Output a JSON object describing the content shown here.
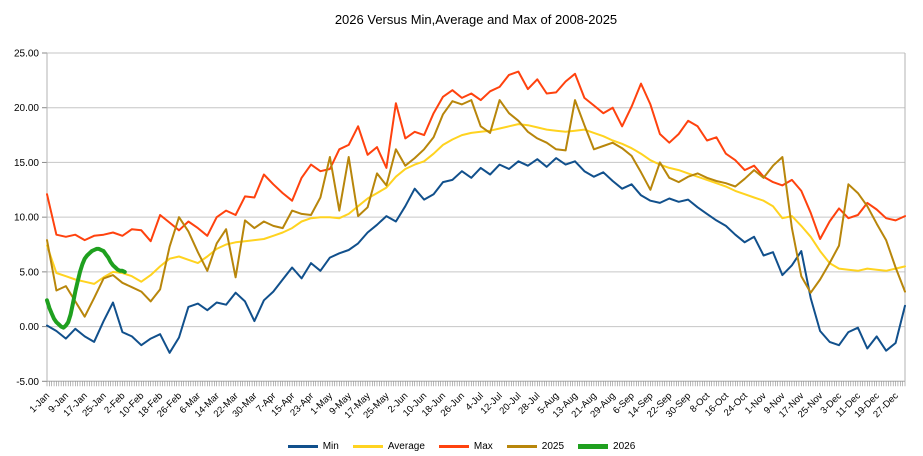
{
  "title": "2026 Versus Min,Average and Max of 2008-2025",
  "chart_data": {
    "type": "line",
    "title": "2026 Versus Min,Average and Max of 2008-2025",
    "grid": "horizontal",
    "grid_color": "#c6c6c6",
    "axis_color": "#b3b3b3",
    "tick_color": "#888888",
    "legend_position": "bottom",
    "y_axis": {
      "min": -5,
      "max": 25,
      "step": 5,
      "tick_labels": [
        "25.00",
        "20.00",
        "15.00",
        "10.00",
        "5.00",
        "0.00",
        "-5.00"
      ]
    },
    "x_axis": {
      "days_in_year": 365,
      "label_step_days": 8,
      "labels": [
        "1-Jan",
        "9-Jan",
        "17-Jan",
        "25-Jan",
        "2-Feb",
        "10-Feb",
        "18-Feb",
        "26-Feb",
        "6-Mar",
        "14-Mar",
        "22-Mar",
        "30-Mar",
        "7-Apr",
        "15-Apr",
        "23-Apr",
        "1-May",
        "9-May",
        "17-May",
        "25-May",
        "2-Jun",
        "10-Jun",
        "18-Jun",
        "26-Jun",
        "4-Jul",
        "12-Jul",
        "20-Jul",
        "28-Jul",
        "5-Aug",
        "13-Aug",
        "21-Aug",
        "29-Aug",
        "6-Sep",
        "14-Sep",
        "22-Sep",
        "30-Sep",
        "8-Oct",
        "16-Oct",
        "24-Oct",
        "1-Nov",
        "9-Nov",
        "17-Nov",
        "25-Nov",
        "3-Dec",
        "11-Dec",
        "19-Dec",
        "27-Dec"
      ]
    },
    "series": [
      {
        "name": "Min",
        "color": "#11508c",
        "width": 2,
        "start_day": 1,
        "step_days": 4,
        "values": [
          0.1,
          -0.4,
          -1.1,
          -0.2,
          -0.9,
          -1.4,
          0.5,
          2.2,
          -0.5,
          -0.9,
          -1.7,
          -1.1,
          -0.7,
          -2.4,
          -1.0,
          1.8,
          2.1,
          1.5,
          2.2,
          2.0,
          3.1,
          2.3,
          0.5,
          2.4,
          3.2,
          4.3,
          5.4,
          4.4,
          5.8,
          5.1,
          6.3,
          6.7,
          7.0,
          7.6,
          8.6,
          9.3,
          10.1,
          9.6,
          11.0,
          12.6,
          11.6,
          12.1,
          13.2,
          13.4,
          14.2,
          13.6,
          14.5,
          13.9,
          14.8,
          14.4,
          15.1,
          14.7,
          15.3,
          14.6,
          15.4,
          14.8,
          15.1,
          14.2,
          13.7,
          14.1,
          13.3,
          12.6,
          13.0,
          12.0,
          11.5,
          11.3,
          11.7,
          11.4,
          11.6,
          10.9,
          10.3,
          9.7,
          9.2,
          8.4,
          7.7,
          8.2,
          6.5,
          6.8,
          4.7,
          5.6,
          6.9,
          2.6,
          -0.4,
          -1.4,
          -1.7,
          -0.5,
          -0.1,
          -2.0,
          -0.9,
          -2.2,
          -1.5,
          1.9
        ]
      },
      {
        "name": "Average",
        "color": "#ffd320",
        "width": 2,
        "start_day": 1,
        "step_days": 4,
        "values": [
          7.4,
          4.9,
          4.6,
          4.3,
          4.1,
          3.9,
          4.5,
          5.0,
          4.9,
          4.6,
          4.1,
          4.7,
          5.5,
          6.2,
          6.4,
          6.1,
          5.8,
          6.4,
          7.1,
          7.5,
          7.7,
          7.8,
          7.9,
          8.0,
          8.3,
          8.6,
          9.0,
          9.6,
          9.9,
          10.0,
          10.0,
          9.9,
          10.3,
          11.0,
          11.7,
          12.2,
          12.7,
          13.7,
          14.4,
          14.8,
          15.1,
          15.8,
          16.6,
          17.1,
          17.5,
          17.7,
          17.8,
          17.9,
          18.1,
          18.3,
          18.5,
          18.4,
          18.2,
          18.0,
          17.9,
          17.8,
          17.9,
          18.0,
          17.7,
          17.4,
          17.0,
          16.7,
          16.3,
          15.8,
          15.2,
          14.8,
          14.5,
          14.3,
          14.0,
          13.7,
          13.4,
          13.1,
          12.8,
          12.4,
          12.1,
          11.8,
          11.5,
          11.0,
          9.9,
          10.1,
          9.2,
          8.2,
          6.9,
          5.8,
          5.3,
          5.2,
          5.1,
          5.3,
          5.2,
          5.1,
          5.3,
          5.5
        ]
      },
      {
        "name": "Max",
        "color": "#ff420e",
        "width": 2,
        "start_day": 1,
        "step_days": 4,
        "values": [
          12.1,
          8.4,
          8.2,
          8.4,
          7.9,
          8.3,
          8.4,
          8.6,
          8.3,
          8.9,
          8.8,
          7.8,
          10.2,
          9.5,
          8.8,
          9.6,
          9.0,
          8.3,
          10.0,
          10.6,
          10.2,
          11.9,
          11.8,
          13.9,
          13.0,
          12.2,
          11.5,
          13.6,
          14.8,
          14.2,
          14.4,
          16.2,
          16.6,
          18.3,
          15.7,
          16.4,
          14.5,
          20.4,
          17.2,
          17.8,
          17.5,
          19.5,
          21.0,
          21.6,
          20.9,
          21.3,
          20.7,
          21.5,
          21.9,
          23.0,
          23.3,
          21.7,
          22.6,
          21.3,
          21.4,
          22.4,
          23.1,
          20.9,
          20.2,
          19.5,
          20.0,
          18.3,
          20.1,
          22.2,
          20.3,
          17.6,
          16.8,
          17.6,
          18.8,
          18.3,
          17.0,
          17.3,
          15.8,
          15.2,
          14.3,
          14.7,
          13.7,
          13.2,
          12.9,
          13.4,
          12.4,
          10.4,
          8.0,
          9.6,
          10.8,
          9.9,
          10.2,
          11.3,
          10.7,
          9.9,
          9.7,
          10.1
        ]
      },
      {
        "name": "2025",
        "color": "#b8860b",
        "width": 2,
        "start_day": 1,
        "step_days": 4,
        "values": [
          7.9,
          3.3,
          3.7,
          2.3,
          0.9,
          2.6,
          4.4,
          4.7,
          4.0,
          3.6,
          3.2,
          2.3,
          3.4,
          7.3,
          10.0,
          8.7,
          6.8,
          5.1,
          7.6,
          8.9,
          4.5,
          9.7,
          9.0,
          9.6,
          9.2,
          9.0,
          10.6,
          10.3,
          10.2,
          11.8,
          15.5,
          10.6,
          15.5,
          10.1,
          10.9,
          14.0,
          12.9,
          16.2,
          14.7,
          15.4,
          16.2,
          17.3,
          19.4,
          20.6,
          20.3,
          20.7,
          18.3,
          17.7,
          20.7,
          19.5,
          18.8,
          17.8,
          17.2,
          16.8,
          16.2,
          16.1,
          20.7,
          18.4,
          16.2,
          16.5,
          16.8,
          16.3,
          15.6,
          14.1,
          12.5,
          15.0,
          13.6,
          13.2,
          13.7,
          14.0,
          13.6,
          13.3,
          13.1,
          12.8,
          13.5,
          14.3,
          13.6,
          14.7,
          15.5,
          9.0,
          4.6,
          3.1,
          4.3,
          5.8,
          7.4,
          13.0,
          12.2,
          11.0,
          9.4,
          7.9,
          5.4,
          3.2
        ]
      },
      {
        "name": "2026",
        "color": "#1fa01f",
        "width": 4,
        "start_day": 1,
        "step_days": 1,
        "values": [
          2.4,
          1.7,
          1.2,
          0.7,
          0.4,
          0.2,
          0.0,
          -0.1,
          0.1,
          0.4,
          1.1,
          2.1,
          3.2,
          4.1,
          5.0,
          5.7,
          6.2,
          6.5,
          6.7,
          6.9,
          7.0,
          7.1,
          7.1,
          7.0,
          6.9,
          6.6,
          6.3,
          5.9,
          5.6,
          5.4,
          5.2,
          5.1,
          5.1,
          5.0
        ]
      }
    ]
  }
}
